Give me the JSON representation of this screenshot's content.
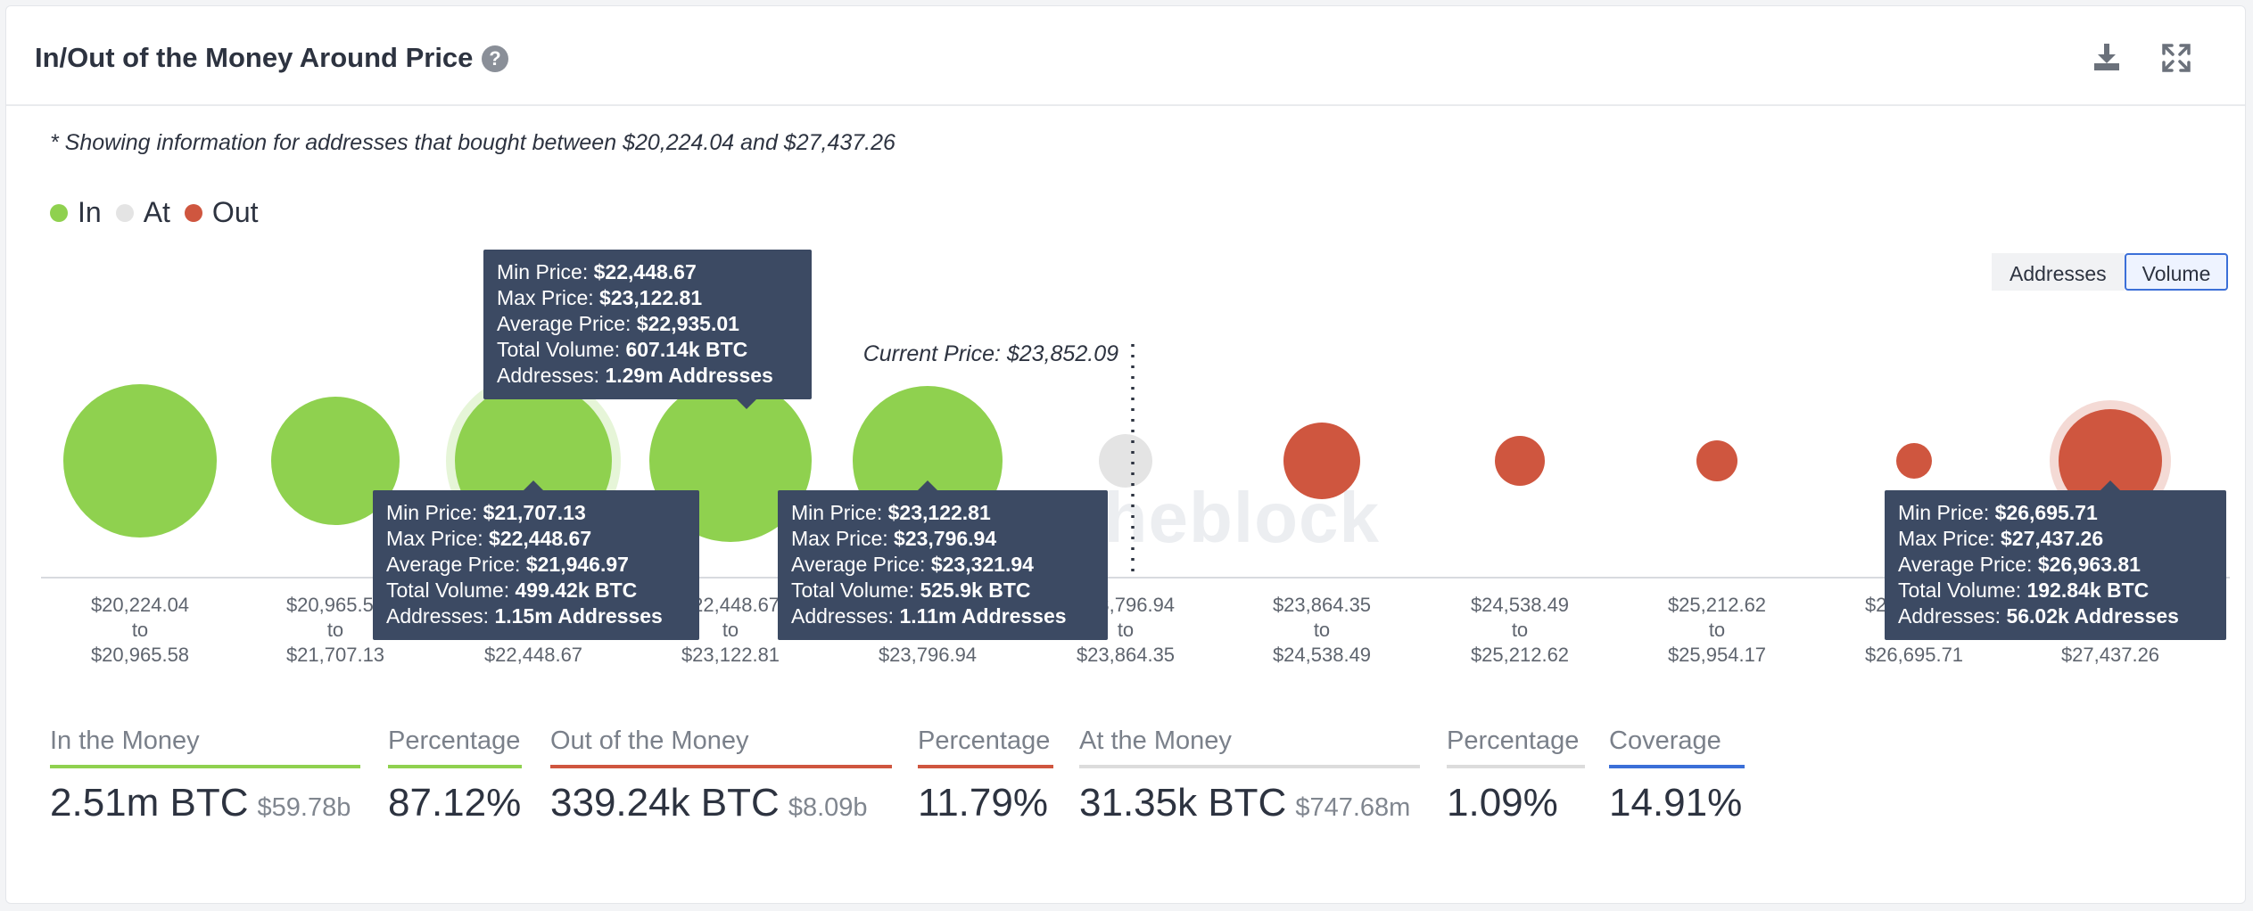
{
  "header": {
    "title": "In/Out of the Money Around Price",
    "help_icon": "question-circle-icon",
    "download_icon": "download-icon",
    "expand_icon": "expand-icon"
  },
  "note": "* Showing information for addresses that bought between $20,224.04 and $27,437.26",
  "legend": [
    {
      "label": "In",
      "color": "#8fd14f"
    },
    {
      "label": "At",
      "color": "#e4e4e4"
    },
    {
      "label": "Out",
      "color": "#cf563f"
    }
  ],
  "toggle": {
    "addresses": "Addresses",
    "volume": "Volume",
    "selected": "Volume"
  },
  "current_price_label": "Current Price: $23,852.09",
  "watermark": "theblock",
  "chart_data": {
    "type": "bubble",
    "metric": "Total Volume (BTC)",
    "current_price": 23852.09,
    "ranges": [
      {
        "from": "$20,224.04",
        "to": "$20,965.58",
        "status": "In",
        "volume_btc": null
      },
      {
        "from": "$20,965.58",
        "to": "$21,707.13",
        "status": "In",
        "volume_btc": null
      },
      {
        "from": "$21,707.13",
        "to": "$22,448.67",
        "status": "In",
        "volume_btc": 499420
      },
      {
        "from": "$22,448.67",
        "to": "$23,122.81",
        "status": "In",
        "volume_btc": 607140
      },
      {
        "from": "$23,122.81",
        "to": "$23,796.94",
        "status": "In",
        "volume_btc": 525900
      },
      {
        "from": "$23,796.94",
        "to": "$23,864.35",
        "status": "At",
        "volume_btc": 31350
      },
      {
        "from": "$23,864.35",
        "to": "$24,538.49",
        "status": "Out",
        "volume_btc": null
      },
      {
        "from": "$24,538.49",
        "to": "$25,212.62",
        "status": "Out",
        "volume_btc": null
      },
      {
        "from": "$25,212.62",
        "to": "$25,954.17",
        "status": "Out",
        "volume_btc": null
      },
      {
        "from": "$25,954.17",
        "to": "$26,695.71",
        "status": "Out",
        "volume_btc": null
      },
      {
        "from": "$26,695.71",
        "to": "$27,437.26",
        "status": "Out",
        "volume_btc": 192840
      }
    ],
    "to_word": "to",
    "tooltips": [
      {
        "min": "$22,448.67",
        "max": "$23,122.81",
        "avg": "$22,935.01",
        "volume": "607.14k BTC",
        "addresses": "1.29m Addresses"
      },
      {
        "min": "$21,707.13",
        "max": "$22,448.67",
        "avg": "$21,946.97",
        "volume": "499.42k BTC",
        "addresses": "1.15m Addresses"
      },
      {
        "min": "$23,122.81",
        "max": "$23,796.94",
        "avg": "$23,321.94",
        "volume": "525.9k BTC",
        "addresses": "1.11m Addresses"
      },
      {
        "min": "$26,695.71",
        "max": "$27,437.26",
        "avg": "$26,963.81",
        "volume": "192.84k BTC",
        "addresses": "56.02k Addresses"
      }
    ],
    "tooltip_labels": {
      "min": "Min Price:",
      "max": "Max Price:",
      "avg": "Average Price:",
      "volume": "Total Volume:",
      "addresses": "Addresses:"
    }
  },
  "stats": {
    "in_money": {
      "label": "In the Money",
      "value": "2.51m BTC",
      "sub": "$59.78b",
      "color": "#8fd14f"
    },
    "in_pct": {
      "label": "Percentage",
      "value": "87.12%",
      "color": "#8fd14f"
    },
    "out_money": {
      "label": "Out of the Money",
      "value": "339.24k BTC",
      "sub": "$8.09b",
      "color": "#cf563f"
    },
    "out_pct": {
      "label": "Percentage",
      "value": "11.79%",
      "color": "#cf563f"
    },
    "at_money": {
      "label": "At the Money",
      "value": "31.35k BTC",
      "sub": "$747.68m",
      "color": "#dcdcdc"
    },
    "at_pct": {
      "label": "Percentage",
      "value": "1.09%",
      "color": "#dcdcdc"
    },
    "coverage": {
      "label": "Coverage",
      "value": "14.91%",
      "color": "#3b6fd8"
    }
  }
}
